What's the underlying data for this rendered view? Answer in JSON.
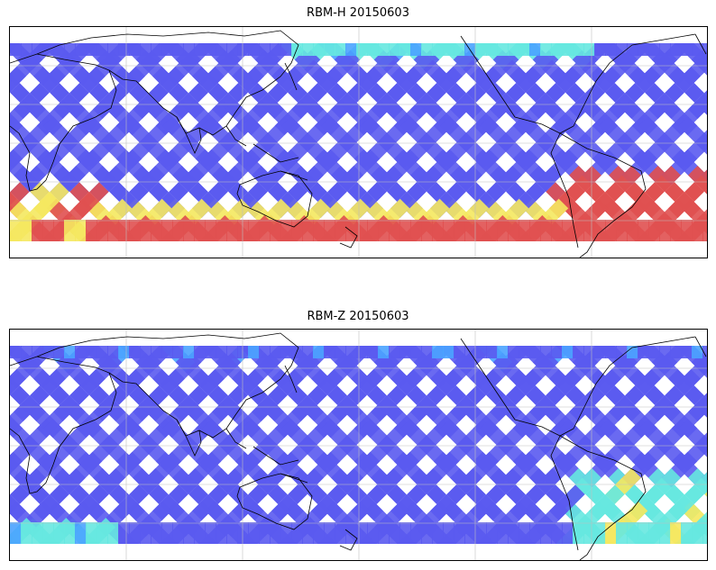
{
  "panels": [
    {
      "title": "RBM-H 20150603",
      "variant": "H"
    },
    {
      "title": "RBM-Z 20150603",
      "variant": "Z"
    }
  ],
  "colors": {
    "low": "#5a5af0",
    "low_mid": "#4aa3ff",
    "mid": "#66e8e0",
    "mid_high": "#f5e860",
    "high": "#e05050",
    "coast": "#000000",
    "grid": "#bfbfbf"
  }
}
